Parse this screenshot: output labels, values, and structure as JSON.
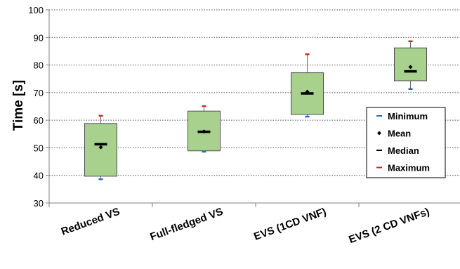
{
  "chart_data": {
    "type": "box",
    "title": "",
    "xlabel": "",
    "ylabel": "Time [s]",
    "ylim": [
      30,
      100
    ],
    "yticks": [
      30,
      40,
      50,
      60,
      70,
      80,
      90,
      100
    ],
    "grid": "horizontal-dashed",
    "categories": [
      "Reduced VS",
      "Full-fledged VS",
      "EVS (1CD VNF)",
      "EVS (2 CD VNFs)"
    ],
    "boxes": [
      {
        "q1": 39.7,
        "q3": 58.8,
        "min": 38.6,
        "max": 61.6,
        "mean": 50.2,
        "median": 51.3
      },
      {
        "q1": 48.9,
        "q3": 63.3,
        "min": 48.6,
        "max": 65.1,
        "mean": 55.9,
        "median": 55.8
      },
      {
        "q1": 62.1,
        "q3": 77.2,
        "min": 61.3,
        "max": 83.9,
        "mean": 70.3,
        "median": 69.7
      },
      {
        "q1": 74.3,
        "q3": 86.2,
        "min": 71.3,
        "max": 88.6,
        "mean": 79.3,
        "median": 77.7
      }
    ],
    "legend": {
      "position": "right",
      "items": [
        {
          "label": "Minimum",
          "color": "#1f6fbf",
          "marker": "dash"
        },
        {
          "label": "Mean",
          "color": "#000000",
          "marker": "diamond"
        },
        {
          "label": "Median",
          "color": "#000000",
          "marker": "dash"
        },
        {
          "label": "Maximum",
          "color": "#e02020",
          "marker": "dash"
        }
      ]
    },
    "colors": {
      "box_fill": "#a9d18e",
      "box_stroke": "#4d4d4d",
      "min_marker": "#1f6fbf",
      "max_marker": "#e02020"
    }
  }
}
